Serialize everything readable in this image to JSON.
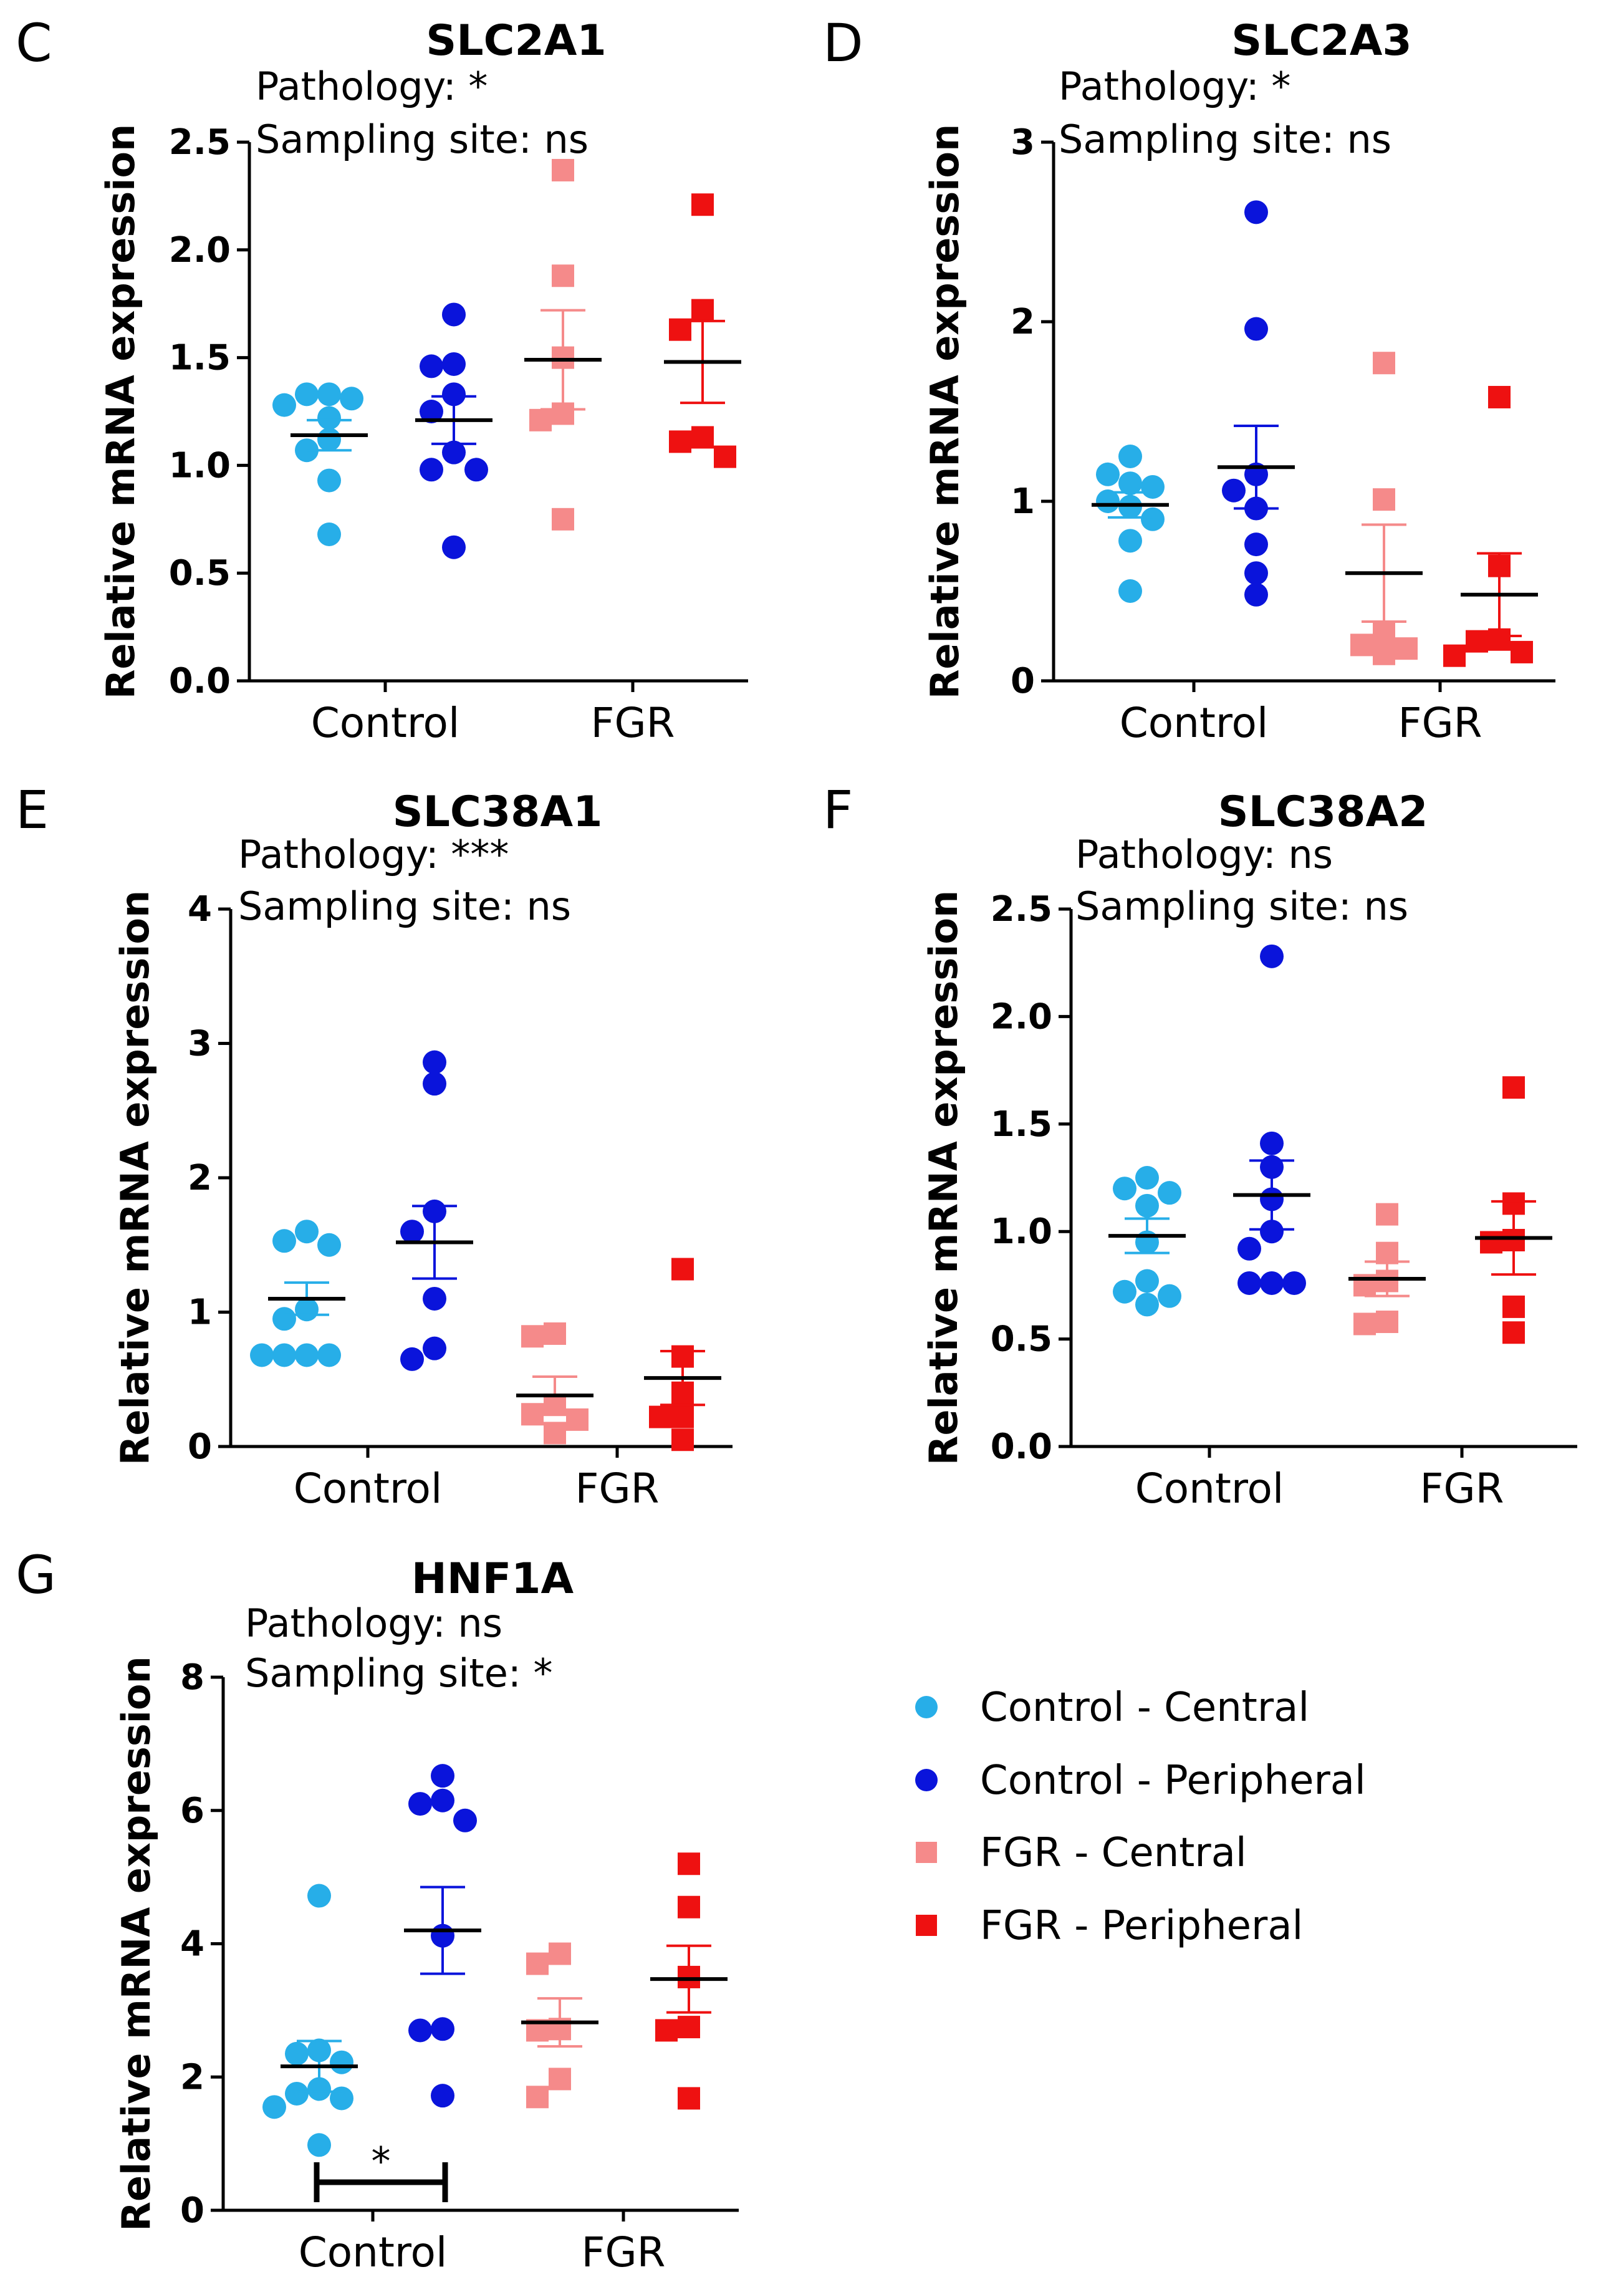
{
  "colors": {
    "control_central": "#27aee8",
    "control_peripheral": "#0a14db",
    "fgr_central": "#f58a8a",
    "fgr_peripheral": "#ee1111"
  },
  "legend": [
    {
      "label": "Control - Central",
      "marker": "circle",
      "color": "#27aee8"
    },
    {
      "label": "Control - Peripheral",
      "marker": "circle",
      "color": "#0a14db"
    },
    {
      "label": "FGR - Central",
      "marker": "square",
      "color": "#f58a8a"
    },
    {
      "label": "FGR - Peripheral",
      "marker": "square",
      "color": "#ee1111"
    }
  ],
  "chart_data": [
    {
      "panel": "C",
      "type": "scatter",
      "title": "SLC2A1",
      "annotations": [
        "Pathology: *",
        "Sampling site: ns"
      ],
      "ylabel": "Relative mRNA expression",
      "xlabel": "",
      "categories": [
        "Control",
        "FGR"
      ],
      "ylim": [
        0,
        2.5
      ],
      "yticks": [
        {
          "value": 0,
          "label": "0.0"
        },
        {
          "value": 0.5,
          "label": "0.5"
        },
        {
          "value": 1,
          "label": "1.0"
        },
        {
          "value": 1.5,
          "label": "1.5"
        },
        {
          "value": 2,
          "label": "2.0"
        },
        {
          "value": 2.5,
          "label": "2.5"
        }
      ],
      "series": [
        {
          "name": "Control - Central",
          "category": "Control",
          "values": [
            1.33,
            1.33,
            1.31,
            1.28,
            1.22,
            1.12,
            1.07,
            0.93,
            0.68
          ],
          "mean": 1.14,
          "sem": 0.07
        },
        {
          "name": "Control - Peripheral",
          "category": "Control",
          "values": [
            1.7,
            1.47,
            1.46,
            1.33,
            1.25,
            1.06,
            0.98,
            0.98,
            0.62
          ],
          "mean": 1.21,
          "sem": 0.11
        },
        {
          "name": "FGR - Central",
          "category": "FGR",
          "values": [
            2.37,
            1.88,
            1.5,
            1.24,
            1.21,
            0.75
          ],
          "mean": 1.49,
          "sem": 0.23
        },
        {
          "name": "FGR - Peripheral",
          "category": "FGR",
          "values": [
            2.21,
            1.72,
            1.63,
            1.13,
            1.11,
            1.04
          ],
          "mean": 1.48,
          "sem": 0.19
        }
      ],
      "significance": []
    },
    {
      "panel": "D",
      "type": "scatter",
      "title": "SLC2A3",
      "annotations": [
        "Pathology: *",
        "Sampling site: ns"
      ],
      "ylabel": "Relative mRNA expression",
      "xlabel": "",
      "categories": [
        "Control",
        "FGR"
      ],
      "ylim": [
        0,
        3
      ],
      "yticks": [
        {
          "value": 0,
          "label": "0"
        },
        {
          "value": 1,
          "label": "1"
        },
        {
          "value": 2,
          "label": "2"
        },
        {
          "value": 3,
          "label": "3"
        }
      ],
      "series": [
        {
          "name": "Control - Central",
          "category": "Control",
          "values": [
            1.25,
            1.15,
            1.1,
            1.08,
            1.0,
            0.97,
            0.9,
            0.78,
            0.5
          ],
          "mean": 0.98,
          "sem": 0.07
        },
        {
          "name": "Control - Peripheral",
          "category": "Control",
          "values": [
            2.61,
            1.96,
            1.15,
            1.06,
            0.96,
            0.76,
            0.6,
            0.48
          ],
          "mean": 1.19,
          "sem": 0.23
        },
        {
          "name": "FGR - Central",
          "category": "FGR",
          "values": [
            1.77,
            1.01,
            0.27,
            0.2,
            0.18,
            0.15
          ],
          "mean": 0.6,
          "sem": 0.27
        },
        {
          "name": "FGR - Peripheral",
          "category": "FGR",
          "values": [
            1.58,
            0.64,
            0.23,
            0.22,
            0.16,
            0.14
          ],
          "mean": 0.48,
          "sem": 0.23
        }
      ],
      "significance": []
    },
    {
      "panel": "E",
      "type": "scatter",
      "title": "SLC38A1",
      "annotations": [
        "Pathology: ***",
        "Sampling site: ns"
      ],
      "ylabel": "Relative mRNA expression",
      "xlabel": "",
      "categories": [
        "Control",
        "FGR"
      ],
      "ylim": [
        0,
        4
      ],
      "yticks": [
        {
          "value": 0,
          "label": "0"
        },
        {
          "value": 1,
          "label": "1"
        },
        {
          "value": 2,
          "label": "2"
        },
        {
          "value": 3,
          "label": "3"
        },
        {
          "value": 4,
          "label": "4"
        }
      ],
      "series": [
        {
          "name": "Control - Central",
          "category": "Control",
          "values": [
            1.6,
            1.53,
            1.5,
            1.02,
            0.95,
            0.68,
            0.68,
            0.68,
            0.68
          ],
          "mean": 1.1,
          "sem": 0.12
        },
        {
          "name": "Control - Peripheral",
          "category": "Control",
          "values": [
            2.86,
            2.7,
            1.75,
            1.6,
            1.1,
            0.73,
            0.65
          ],
          "mean": 1.52,
          "sem": 0.27
        },
        {
          "name": "FGR - Central",
          "category": "FGR",
          "values": [
            0.84,
            0.82,
            0.31,
            0.24,
            0.2,
            0.1
          ],
          "mean": 0.38,
          "sem": 0.14
        },
        {
          "name": "FGR - Peripheral",
          "category": "FGR",
          "values": [
            1.32,
            0.67,
            0.4,
            0.22,
            0.22,
            0.05
          ],
          "mean": 0.51,
          "sem": 0.2
        }
      ],
      "significance": []
    },
    {
      "panel": "F",
      "type": "scatter",
      "title": "SLC38A2",
      "annotations": [
        "Pathology: ns",
        "Sampling site: ns"
      ],
      "ylabel": "Relative mRNA expression",
      "xlabel": "",
      "categories": [
        "Control",
        "FGR"
      ],
      "ylim": [
        0,
        2.5
      ],
      "yticks": [
        {
          "value": 0,
          "label": "0.0"
        },
        {
          "value": 0.5,
          "label": "0.5"
        },
        {
          "value": 1,
          "label": "1.0"
        },
        {
          "value": 1.5,
          "label": "1.5"
        },
        {
          "value": 2,
          "label": "2.0"
        },
        {
          "value": 2.5,
          "label": "2.5"
        }
      ],
      "series": [
        {
          "name": "Control - Central",
          "category": "Control",
          "values": [
            1.25,
            1.2,
            1.18,
            1.12,
            0.95,
            0.77,
            0.72,
            0.7,
            0.66
          ],
          "mean": 0.98,
          "sem": 0.08
        },
        {
          "name": "Control - Peripheral",
          "category": "Control",
          "values": [
            2.28,
            1.41,
            1.3,
            1.15,
            1.0,
            0.92,
            0.76,
            0.76,
            0.76
          ],
          "mean": 1.17,
          "sem": 0.16
        },
        {
          "name": "FGR - Central",
          "category": "FGR",
          "values": [
            1.08,
            0.9,
            0.77,
            0.75,
            0.58,
            0.57
          ],
          "mean": 0.78,
          "sem": 0.08
        },
        {
          "name": "FGR - Peripheral",
          "category": "FGR",
          "values": [
            1.67,
            1.13,
            0.96,
            0.95,
            0.65,
            0.53
          ],
          "mean": 0.97,
          "sem": 0.17
        }
      ],
      "significance": []
    },
    {
      "panel": "G",
      "type": "scatter",
      "title": "HNF1A",
      "annotations": [
        "Pathology: ns",
        "Sampling site: *"
      ],
      "ylabel": "Relative mRNA expression",
      "xlabel": "",
      "categories": [
        "Control",
        "FGR"
      ],
      "ylim": [
        0,
        8
      ],
      "yticks": [
        {
          "value": 0,
          "label": "0"
        },
        {
          "value": 2,
          "label": "2"
        },
        {
          "value": 4,
          "label": "4"
        },
        {
          "value": 6,
          "label": "6"
        },
        {
          "value": 8,
          "label": "8"
        }
      ],
      "series": [
        {
          "name": "Control - Central",
          "category": "Control",
          "values": [
            4.72,
            2.4,
            2.35,
            2.22,
            1.82,
            1.75,
            1.68,
            1.55,
            0.98
          ],
          "mean": 2.16,
          "sem": 0.38
        },
        {
          "name": "Control - Peripheral",
          "category": "Control",
          "values": [
            6.52,
            6.15,
            6.1,
            5.85,
            4.12,
            2.72,
            2.7,
            1.72
          ],
          "mean": 4.2,
          "sem": 0.65
        },
        {
          "name": "FGR - Central",
          "category": "FGR",
          "values": [
            3.85,
            3.7,
            2.72,
            2.7,
            1.97,
            1.7
          ],
          "mean": 2.82,
          "sem": 0.36
        },
        {
          "name": "FGR - Peripheral",
          "category": "FGR",
          "values": [
            5.2,
            4.55,
            3.5,
            2.75,
            2.7,
            1.68
          ],
          "mean": 3.47,
          "sem": 0.5
        }
      ],
      "significance": [
        {
          "between": [
            "Control - Central",
            "Control - Peripheral"
          ],
          "label": "*"
        }
      ]
    }
  ]
}
